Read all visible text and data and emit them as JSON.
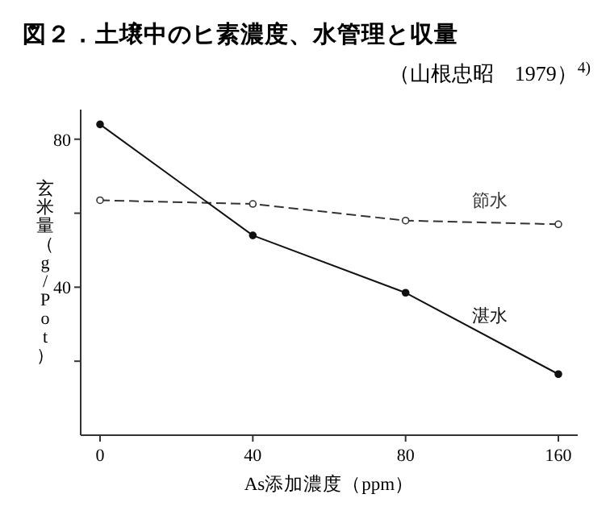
{
  "chart_data": {
    "type": "line",
    "title": "図２．土壌中のヒ素濃度、水管理と収量",
    "subtitle": "（山根忠昭　1979）$^{4)}$",
    "xlabel": "As添加濃度（ppm）",
    "ylabel": "玄米量（g/Pot）",
    "categories": [
      "0",
      "40",
      "80",
      "160"
    ],
    "ylim": [
      0,
      88
    ],
    "yticks": [
      {
        "value": 20,
        "label": null
      },
      40,
      {
        "value": 60,
        "label": null
      },
      80
    ],
    "grid": false,
    "series": [
      {
        "name": "節水",
        "color": "#333333",
        "values": [
          63.5,
          62.5,
          58,
          57
        ],
        "marker": "circle",
        "line_style": "dashed"
      },
      {
        "name": "湛水",
        "color": "#111111",
        "values": [
          84,
          54,
          38.5,
          16.5
        ],
        "marker": "circle",
        "line_style": "solid"
      }
    ]
  }
}
